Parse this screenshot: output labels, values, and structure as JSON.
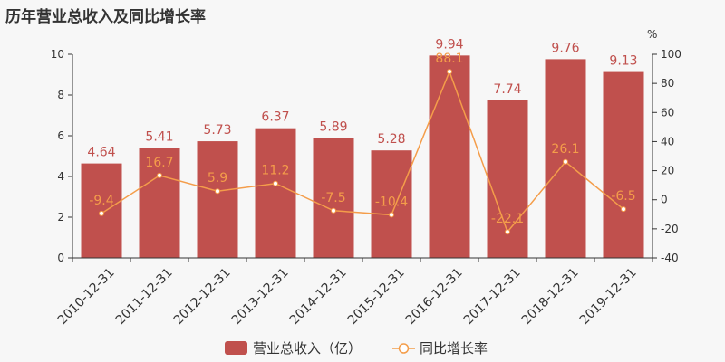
{
  "chart_data": {
    "type": "bar",
    "title": "历年营业总收入及同比增长率",
    "categories": [
      "2010-12-31",
      "2011-12-31",
      "2012-12-31",
      "2013-12-31",
      "2014-12-31",
      "2015-12-31",
      "2016-12-31",
      "2017-12-31",
      "2018-12-31",
      "2019-12-31"
    ],
    "series": [
      {
        "name": "营业总收入（亿）",
        "type": "bar",
        "axis": "left",
        "values": [
          4.64,
          5.41,
          5.73,
          6.37,
          5.89,
          5.28,
          9.94,
          7.74,
          9.76,
          9.13
        ],
        "labels": [
          "4.64",
          "5.41",
          "5.73",
          "6.37",
          "5.89",
          "5.28",
          "9.94",
          "7.74",
          "9.76",
          "9.13"
        ]
      },
      {
        "name": "同比增长率",
        "type": "line",
        "axis": "right",
        "values": [
          -9.4,
          16.7,
          5.9,
          11.2,
          -7.5,
          -10.4,
          88.1,
          -22.1,
          26.1,
          -6.5
        ],
        "labels": [
          "-9.4",
          "16.7",
          "5.9",
          "11.2",
          "-7.5",
          "-10.4",
          "88.1",
          "-22.1",
          "26.1",
          "-6.5"
        ]
      }
    ],
    "y_left": {
      "min": 0,
      "max": 10,
      "ticks": [
        "0",
        "2",
        "4",
        "6",
        "8",
        "10"
      ]
    },
    "y_right": {
      "min": -40,
      "max": 100,
      "unit": "%",
      "ticks": [
        "-40",
        "-20",
        "0",
        "20",
        "40",
        "60",
        "80",
        "100"
      ]
    },
    "grid": false,
    "legend_position": "bottom-center",
    "colors": {
      "bar": "#c0504d",
      "line": "#f49d4a",
      "axis": "#333333",
      "background": "#f7f7f7"
    }
  }
}
